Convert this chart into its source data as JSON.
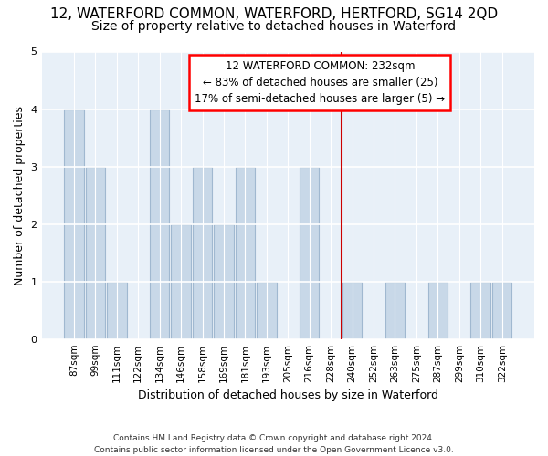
{
  "title": "12, WATERFORD COMMON, WATERFORD, HERTFORD, SG14 2QD",
  "subtitle": "Size of property relative to detached houses in Waterford",
  "xlabel": "Distribution of detached houses by size in Waterford",
  "ylabel": "Number of detached properties",
  "bar_labels": [
    "87sqm",
    "99sqm",
    "111sqm",
    "122sqm",
    "134sqm",
    "146sqm",
    "158sqm",
    "169sqm",
    "181sqm",
    "193sqm",
    "205sqm",
    "216sqm",
    "228sqm",
    "240sqm",
    "252sqm",
    "263sqm",
    "275sqm",
    "287sqm",
    "299sqm",
    "310sqm",
    "322sqm"
  ],
  "bar_heights": [
    4,
    3,
    1,
    0,
    4,
    2,
    3,
    2,
    3,
    1,
    0,
    3,
    0,
    1,
    0,
    1,
    0,
    1,
    0,
    1,
    1
  ],
  "bar_color": "#c8d8e8",
  "bar_edge_color": "#a0b8d0",
  "vline_x": 12.5,
  "vline_color": "#cc0000",
  "annotation_line1": "12 WATERFORD COMMON: 232sqm",
  "annotation_line2": "← 83% of detached houses are smaller (25)",
  "annotation_line3": "17% of semi-detached houses are larger (5) →",
  "footer_line1": "Contains HM Land Registry data © Crown copyright and database right 2024.",
  "footer_line2": "Contains public sector information licensed under the Open Government Licence v3.0.",
  "ylim": [
    0,
    5
  ],
  "yticks": [
    0,
    1,
    2,
    3,
    4,
    5
  ],
  "bg_color": "#e8f0f8",
  "grid_color": "#ffffff",
  "title_fontsize": 11,
  "subtitle_fontsize": 10,
  "ylabel_fontsize": 9,
  "xlabel_fontsize": 9,
  "tick_fontsize": 7.5,
  "annotation_fontsize": 8.5,
  "footer_fontsize": 6.5
}
